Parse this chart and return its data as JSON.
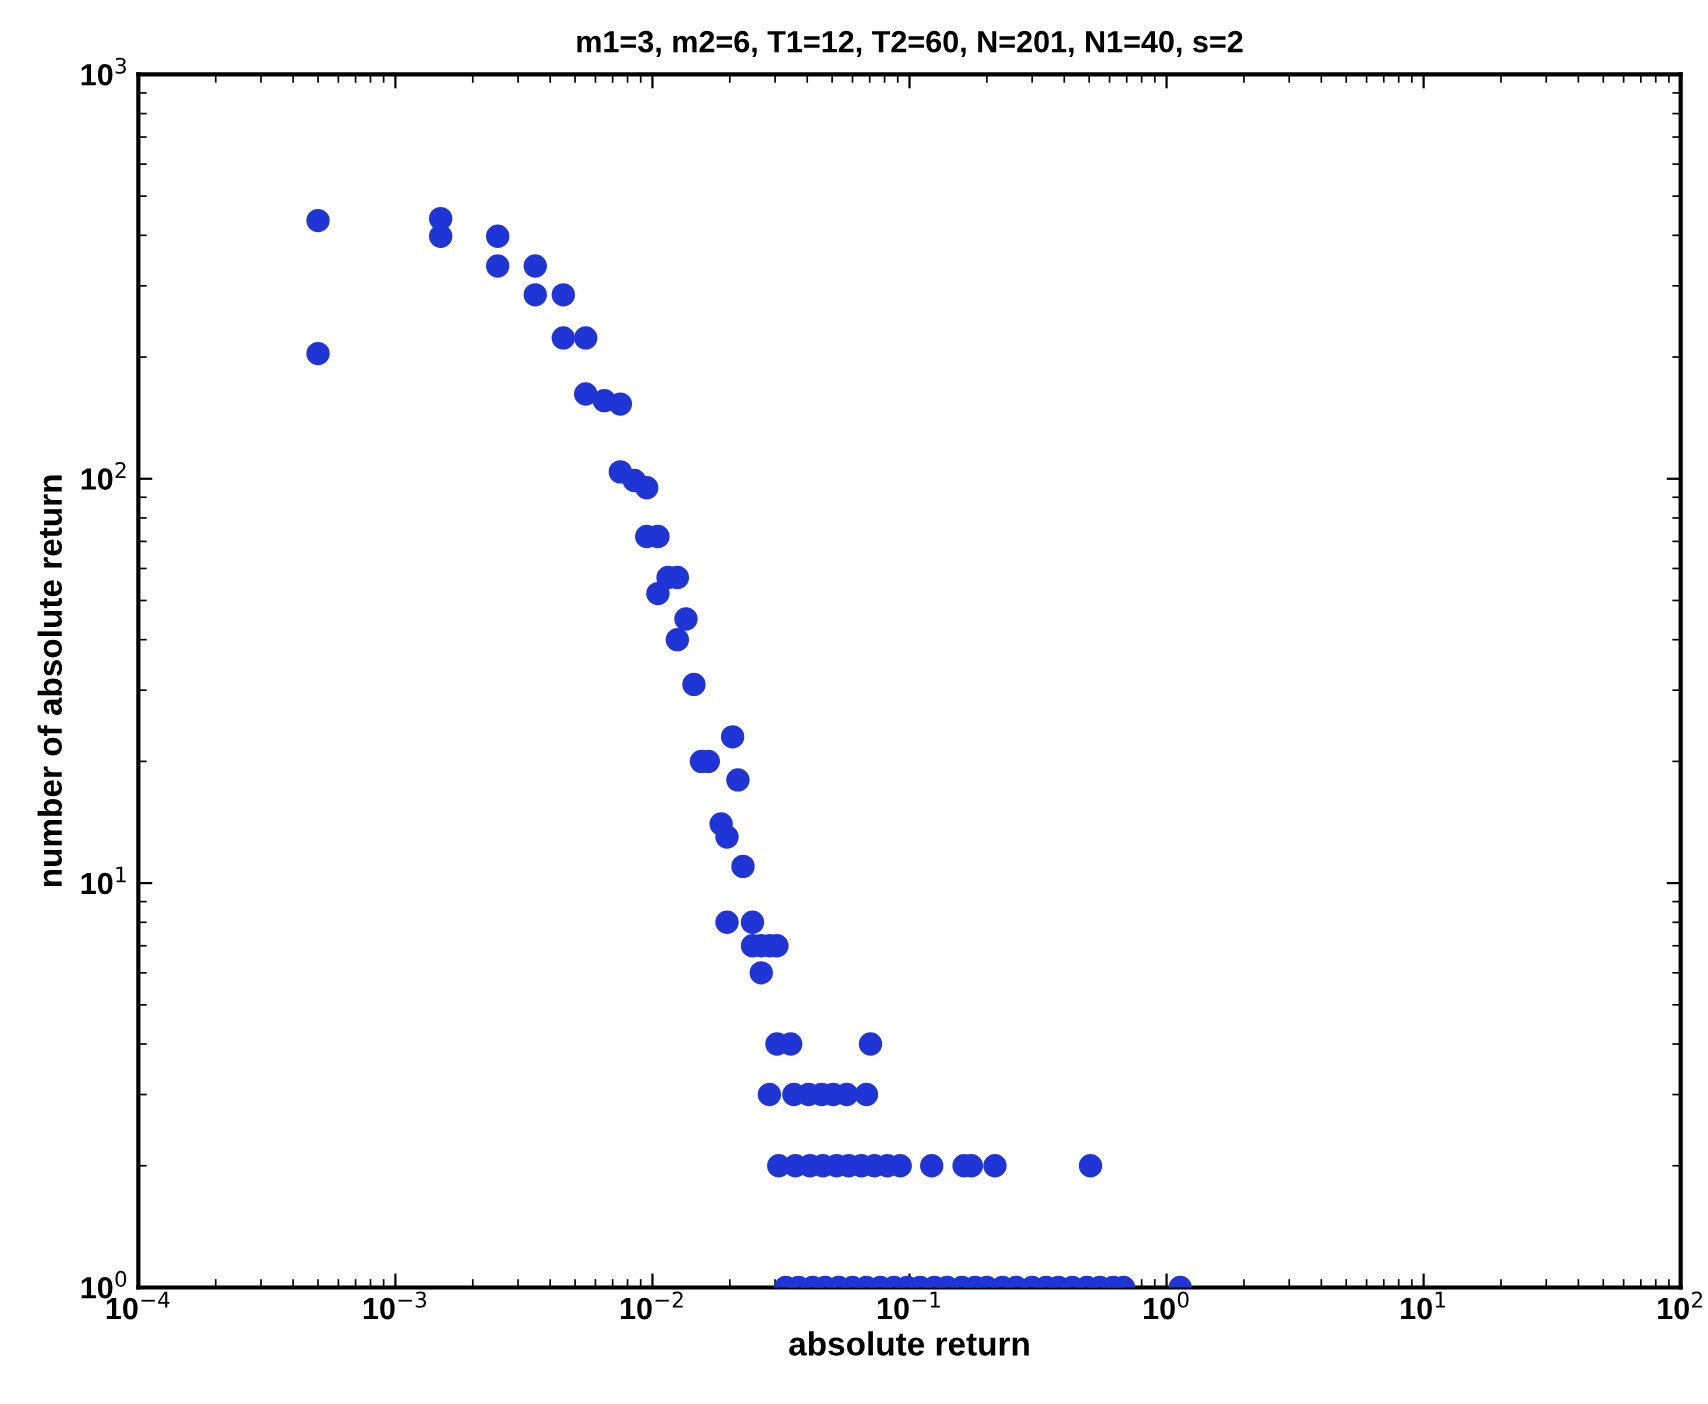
{
  "chart_data": {
    "type": "scatter",
    "title": "m1=3, m2=6, T1=12, T2=60, N=201, N1=40, s=2",
    "xlabel": "absolute return",
    "ylabel": "number of absolute return",
    "log": "xy",
    "grid": false,
    "marker": "circle",
    "xlim": [
      0.0001,
      100
    ],
    "ylim": [
      1,
      1000
    ],
    "xticks": [
      {
        "value": 0.0001,
        "label": "10$^{−4}$"
      },
      {
        "value": 0.001,
        "label": "10$^{−3}$"
      },
      {
        "value": 0.01,
        "label": "10$^{−2}$"
      },
      {
        "value": 0.1,
        "label": "10$^{−1}$"
      },
      {
        "value": 1,
        "label": "10$^{0}$"
      },
      {
        "value": 10,
        "label": "10$^{1}$"
      },
      {
        "value": 100,
        "label": "10$^{2}$"
      }
    ],
    "yticks": [
      {
        "value": 1,
        "label": "10$^{0}$"
      },
      {
        "value": 10,
        "label": "10$^{1}$"
      },
      {
        "value": 100,
        "label": "10$^{2}$"
      },
      {
        "value": 1000,
        "label": "10$^{3}$"
      }
    ],
    "series": [
      {
        "color": "#1f35d6",
        "x": [
          0.0005,
          0.0005,
          0.0015,
          0.0015,
          0.0025,
          0.0025,
          0.0035,
          0.0035,
          0.0045,
          0.0045,
          0.0055,
          0.0055,
          0.0065,
          0.0075,
          0.0075,
          0.0085,
          0.0095,
          0.0095,
          0.0105,
          0.0105,
          0.0115,
          0.0125,
          0.0135,
          0.0125,
          0.0145,
          0.0205,
          0.0165,
          0.0155,
          0.0215,
          0.0185,
          0.0195,
          0.0225,
          0.0195,
          0.0245,
          0.0245,
          0.0265,
          0.0285,
          0.0305,
          0.0265,
          0.0305,
          0.0345,
          0.0705,
          0.0285,
          0.0355,
          0.0405,
          0.0455,
          0.0505,
          0.057,
          0.068,
          0.031,
          0.036,
          0.041,
          0.046,
          0.052,
          0.058,
          0.065,
          0.073,
          0.082,
          0.092,
          0.122,
          0.163,
          0.174,
          0.215,
          0.506,
          0.033,
          0.037,
          0.042,
          0.047,
          0.053,
          0.06,
          0.068,
          0.077,
          0.087,
          0.098,
          0.11,
          0.125,
          0.14,
          0.16,
          0.18,
          0.2,
          0.23,
          0.26,
          0.3,
          0.34,
          0.38,
          0.43,
          0.49,
          0.55,
          0.62,
          0.68,
          1.13
        ],
        "values": [
          435,
          204,
          440,
          398,
          398,
          336,
          336,
          285,
          285,
          223,
          223,
          162,
          156,
          153,
          104,
          99,
          95,
          72,
          72,
          52,
          57,
          57,
          45,
          40,
          31,
          23,
          20,
          20,
          18,
          14,
          13,
          11,
          8,
          8,
          7,
          7,
          7,
          7,
          6,
          4,
          4,
          4,
          3,
          3,
          3,
          3,
          3,
          3,
          3,
          2,
          2,
          2,
          2,
          2,
          2,
          2,
          2,
          2,
          2,
          2,
          2,
          2,
          2,
          2,
          1,
          1,
          1,
          1,
          1,
          1,
          1,
          1,
          1,
          1,
          1,
          1,
          1,
          1,
          1,
          1,
          1,
          1,
          1,
          1,
          1,
          1,
          1,
          1,
          1,
          1,
          1
        ]
      }
    ]
  }
}
